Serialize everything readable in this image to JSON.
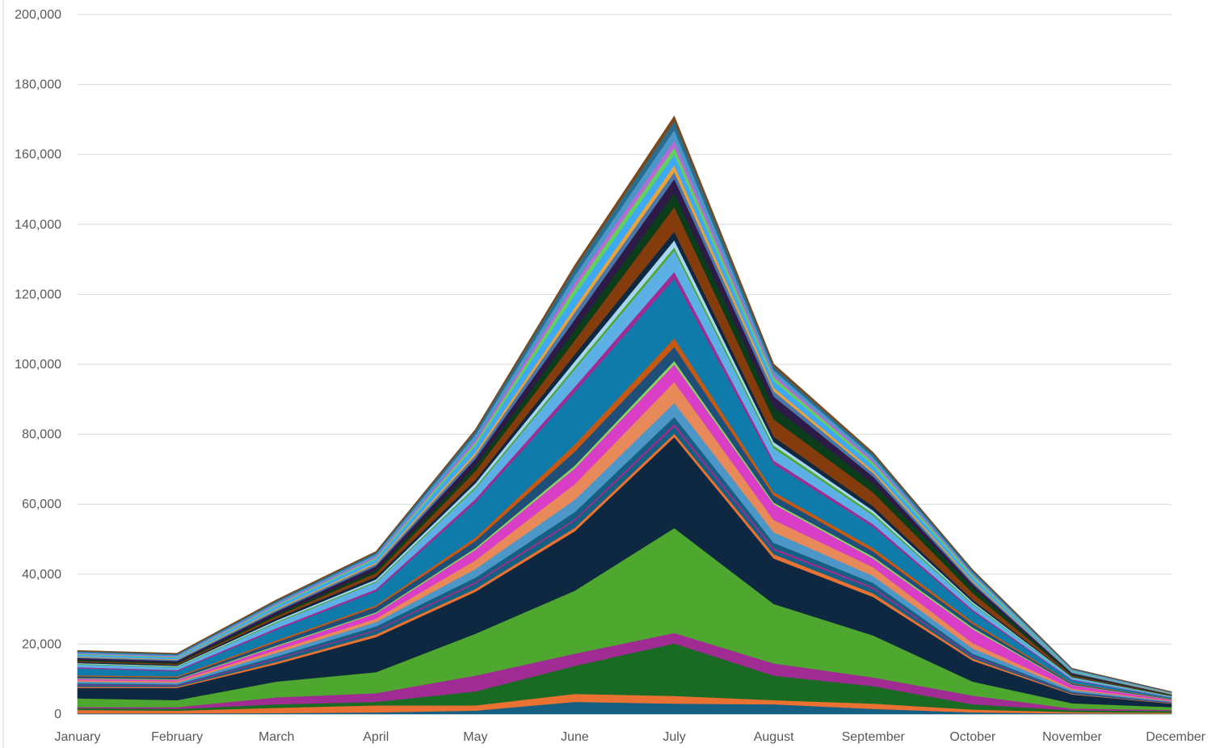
{
  "chart_data": {
    "type": "area",
    "stacked": true,
    "title": "",
    "xlabel": "",
    "ylabel": "",
    "ylim": [
      0,
      200000
    ],
    "yticks": [
      0,
      20000,
      40000,
      60000,
      80000,
      100000,
      120000,
      140000,
      160000,
      180000,
      200000
    ],
    "ytick_labels": [
      "0",
      "20,000",
      "40,000",
      "60,000",
      "80,000",
      "100,000",
      "120,000",
      "140,000",
      "160,000",
      "180,000",
      "200,000"
    ],
    "grid": true,
    "legend": "none",
    "categories": [
      "January",
      "February",
      "March",
      "April",
      "May",
      "June",
      "July",
      "August",
      "September",
      "October",
      "November",
      "December"
    ],
    "series": [
      {
        "color": "#156082",
        "values": [
          200,
          200,
          300,
          500,
          1000,
          3500,
          3000,
          2800,
          1500,
          500,
          200,
          100
        ]
      },
      {
        "color": "#e97132",
        "values": [
          1000,
          800,
          1500,
          2000,
          1500,
          2300,
          2200,
          1200,
          1500,
          800,
          400,
          300
        ]
      },
      {
        "color": "#196b24",
        "values": [
          500,
          500,
          1000,
          1000,
          4000,
          8000,
          15000,
          7000,
          5000,
          1500,
          500,
          500
        ]
      },
      {
        "color": "#a02b93",
        "values": [
          300,
          500,
          2000,
          2500,
          4500,
          3500,
          3000,
          3500,
          2500,
          2500,
          500,
          300
        ]
      },
      {
        "color": "#4ea72e",
        "values": [
          2500,
          2000,
          4500,
          6000,
          12000,
          18000,
          30000,
          17000,
          12000,
          4000,
          1500,
          800
        ]
      },
      {
        "color": "#0e2841",
        "values": [
          3000,
          3500,
          5000,
          10000,
          12000,
          17000,
          26000,
          13000,
          11000,
          6000,
          2500,
          1000
        ]
      },
      {
        "color": "#e97132",
        "values": [
          300,
          300,
          600,
          800,
          800,
          1000,
          1000,
          1200,
          1000,
          600,
          200,
          100
        ]
      },
      {
        "color": "#156082",
        "values": [
          500,
          300,
          800,
          1000,
          1500,
          2000,
          2000,
          1200,
          1300,
          500,
          300,
          100
        ]
      },
      {
        "color": "#a02b93",
        "values": [
          200,
          200,
          300,
          300,
          500,
          500,
          800,
          600,
          500,
          300,
          100,
          100
        ]
      },
      {
        "color": "#156082",
        "values": [
          300,
          200,
          500,
          1000,
          1200,
          2000,
          2000,
          1500,
          1200,
          600,
          200,
          100
        ]
      },
      {
        "color": "#4d96c8",
        "values": [
          500,
          500,
          1000,
          1200,
          2500,
          3500,
          4000,
          3000,
          2000,
          1500,
          500,
          200
        ]
      },
      {
        "color": "#e8895a",
        "values": [
          400,
          400,
          800,
          1000,
          2500,
          4500,
          6000,
          3500,
          2500,
          1500,
          400,
          200
        ]
      },
      {
        "color": "#d83ec6",
        "values": [
          400,
          400,
          1000,
          1500,
          3000,
          4500,
          5000,
          4500,
          2500,
          4000,
          1000,
          300
        ]
      },
      {
        "color": "#8ad75f",
        "values": [
          200,
          200,
          300,
          300,
          500,
          800,
          1000,
          500,
          500,
          500,
          100,
          100
        ]
      },
      {
        "color": "#1f4e79",
        "values": [
          500,
          500,
          1000,
          1500,
          2000,
          4000,
          4000,
          2000,
          1500,
          1000,
          300,
          100
        ]
      },
      {
        "color": "#c65911",
        "values": [
          300,
          300,
          500,
          500,
          1000,
          2000,
          2500,
          1000,
          1000,
          600,
          200,
          100
        ]
      },
      {
        "color": "#0f7bab",
        "values": [
          2000,
          1500,
          3000,
          4000,
          10000,
          15000,
          17000,
          8000,
          6000,
          3000,
          800,
          300
        ]
      },
      {
        "color": "#a02b93",
        "values": [
          300,
          300,
          500,
          600,
          1000,
          1500,
          2000,
          1000,
          800,
          500,
          200,
          100
        ]
      },
      {
        "color": "#5cb0e6",
        "values": [
          800,
          800,
          1500,
          2000,
          3000,
          5000,
          6000,
          3500,
          2500,
          1500,
          500,
          200
        ]
      },
      {
        "color": "#4ea72e",
        "values": [
          200,
          200,
          300,
          300,
          500,
          800,
          1000,
          800,
          600,
          300,
          100,
          100
        ]
      },
      {
        "color": "#a9d6f5",
        "values": [
          200,
          200,
          400,
          500,
          1000,
          1500,
          2000,
          1000,
          800,
          400,
          100,
          100
        ]
      },
      {
        "color": "#0e2841",
        "values": [
          300,
          300,
          600,
          800,
          1000,
          2000,
          2500,
          1500,
          1200,
          600,
          200,
          100
        ]
      },
      {
        "color": "#843c0c",
        "values": [
          300,
          300,
          600,
          1000,
          2500,
          4000,
          7000,
          5000,
          4000,
          2000,
          300,
          100
        ]
      },
      {
        "color": "#0b3d1a",
        "values": [
          300,
          300,
          500,
          800,
          1500,
          3000,
          4000,
          3500,
          2500,
          1500,
          300,
          100
        ]
      },
      {
        "color": "#2e1a47",
        "values": [
          500,
          500,
          800,
          1200,
          2000,
          3000,
          4000,
          3000,
          2000,
          1000,
          300,
          100
        ]
      },
      {
        "color": "#4a76a8",
        "values": [
          300,
          300,
          500,
          600,
          1000,
          2000,
          2000,
          1500,
          1000,
          600,
          200,
          100
        ]
      },
      {
        "color": "#e8a33d",
        "values": [
          200,
          200,
          300,
          400,
          800,
          1500,
          2000,
          1000,
          700,
          400,
          100,
          100
        ]
      },
      {
        "color": "#3fa9f5",
        "values": [
          500,
          500,
          800,
          1000,
          2000,
          3500,
          3000,
          2000,
          1500,
          1000,
          300,
          100
        ]
      },
      {
        "color": "#62d15c",
        "values": [
          200,
          200,
          300,
          400,
          800,
          2000,
          2000,
          1000,
          800,
          500,
          200,
          100
        ]
      },
      {
        "color": "#b86bd6",
        "values": [
          200,
          200,
          300,
          400,
          800,
          1500,
          2000,
          800,
          600,
          300,
          100,
          100
        ]
      },
      {
        "color": "#4d96c8",
        "values": [
          300,
          300,
          500,
          600,
          1500,
          2000,
          3000,
          1200,
          1000,
          500,
          200,
          100
        ]
      },
      {
        "color": "#2a6e8f",
        "values": [
          300,
          300,
          400,
          500,
          1000,
          2000,
          2500,
          1000,
          800,
          500,
          200,
          100
        ]
      },
      {
        "color": "#7a4a1e",
        "values": [
          200,
          200,
          300,
          300,
          500,
          1000,
          1500,
          800,
          500,
          300,
          100,
          100
        ]
      }
    ]
  }
}
